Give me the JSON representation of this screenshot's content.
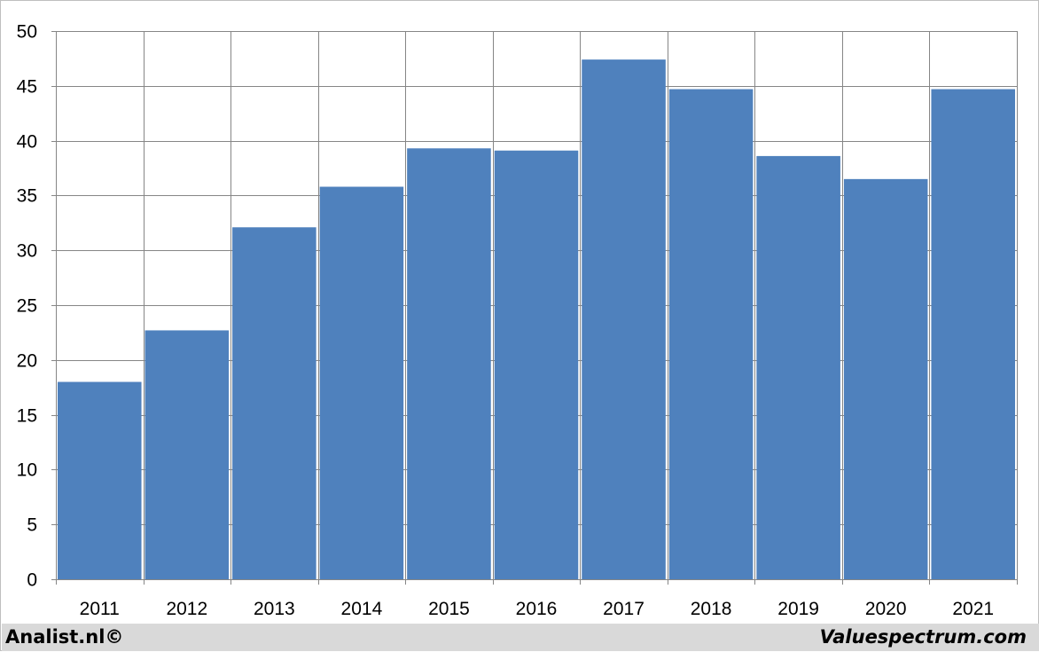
{
  "chart_data": {
    "type": "bar",
    "categories": [
      "2011",
      "2012",
      "2013",
      "2014",
      "2015",
      "2016",
      "2017",
      "2018",
      "2019",
      "2020",
      "2021"
    ],
    "values": [
      18.0,
      22.7,
      32.1,
      35.8,
      39.3,
      39.1,
      47.4,
      44.7,
      38.6,
      36.5,
      44.7
    ],
    "ylim": [
      0,
      50
    ],
    "yticks": [
      "0",
      "5",
      "10",
      "15",
      "20",
      "25",
      "30",
      "35",
      "40",
      "45",
      "50"
    ],
    "title": "",
    "xlabel": "",
    "ylabel": "",
    "grid": "on",
    "legend": "none",
    "bar_color": "#4f81bd",
    "grid_color": "#868686"
  },
  "footer": {
    "left_text": "Analist.nl©",
    "right_text": "Valuespectrum.com"
  }
}
